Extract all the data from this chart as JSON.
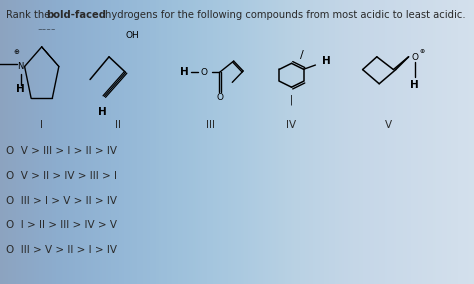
{
  "bg_color_top": "#d0dde8",
  "bg_color_mid": "#b8cfe0",
  "bg_color_bot": "#c5d5e5",
  "text_color": "#2a2a2a",
  "title_line": "Rank the bold-faced hydrogens for the following compounds from most acidic to least acidic.",
  "options": [
    "O  V > III > I > II > IV",
    "O  V > II > IV > III > I",
    "O  III > I > V > II > IV",
    "O  I > II > III > IV > V",
    "O  III > V > II > I > IV"
  ],
  "compound_labels": [
    "I",
    "II",
    "III",
    "IV",
    "V"
  ],
  "figsize": [
    4.74,
    2.84
  ],
  "dpi": 100
}
